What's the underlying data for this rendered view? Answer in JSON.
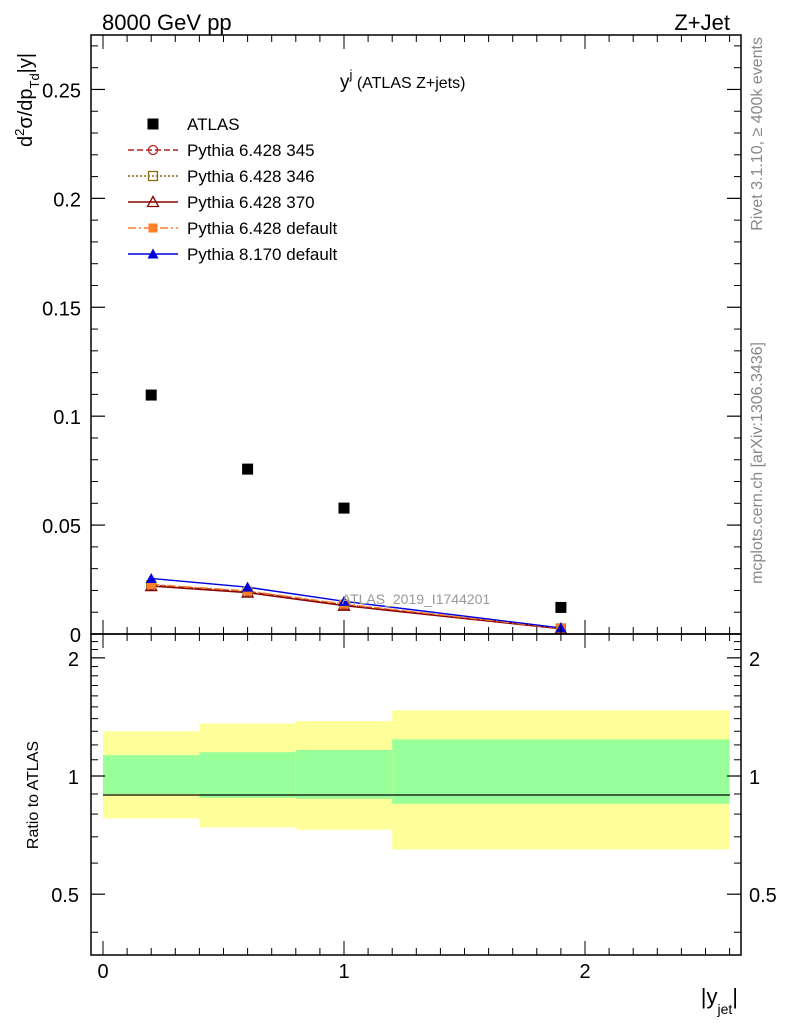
{
  "header": {
    "left": "8000 GeV pp",
    "right": "Z+Jet"
  },
  "side_labels": {
    "rivet": "Rivet 3.1.10, ≥ 400k events",
    "mcplots": "mcplots.cern.ch [arXiv:1306.3436]"
  },
  "main_plot": {
    "title_main": "y",
    "title_sup": "j",
    "title_suffix": " (ATLAS Z+jets)",
    "ylabel_a": "d",
    "ylabel_b": "2",
    "ylabel_c": "σ/dp",
    "ylabel_d": "Td",
    "ylabel_e": "|y|",
    "watermark": "ATLAS_2019_I1744201",
    "y_ticks": [
      "0",
      "0.05",
      "0.1",
      "0.15",
      "0.2",
      "0.25"
    ]
  },
  "ratio_plot": {
    "ylabel": "Ratio to ATLAS",
    "y_ticks": [
      "0.5",
      "1",
      "2"
    ]
  },
  "x_axis": {
    "label_a": "|y",
    "label_b": "jet",
    "label_c": "|",
    "ticks": [
      "0",
      "1",
      "2"
    ]
  },
  "colors": {
    "atlas": "#000000",
    "p345": "#b22222",
    "p346": "#8b6914",
    "p370": "#8b0000",
    "pdefault": "#ff7f2a",
    "p8": "#0000dd",
    "band_outer": "#ffff99",
    "band_inner": "#99ff99"
  },
  "chart_data": [
    {
      "type": "scatter",
      "title": "y^j (ATLAS Z+jets)",
      "xlabel": "|y_jet|",
      "ylabel": "d^2σ/dp_Td|y|",
      "xlim": [
        -0.05,
        2.67
      ],
      "ylim": [
        0,
        0.275
      ],
      "legend_position": "top-left",
      "series": [
        {
          "name": "ATLAS",
          "style": "square-filled",
          "color": "#000000",
          "x": [
            0.2,
            0.6,
            1.0,
            1.9
          ],
          "y": [
            0.1097,
            0.0757,
            0.0578,
            0.0122
          ]
        },
        {
          "name": "Pythia 6.428 345",
          "style": "circle-open-dashed",
          "color": "#b22222",
          "x": [
            0.2,
            0.6,
            1.0,
            1.9
          ],
          "y": [
            0.0225,
            0.0195,
            0.0135,
            0.0025
          ]
        },
        {
          "name": "Pythia 6.428 346",
          "style": "square-open-dotted",
          "color": "#8b6914",
          "x": [
            0.2,
            0.6,
            1.0,
            1.9
          ],
          "y": [
            0.0222,
            0.0192,
            0.0133,
            0.0025
          ]
        },
        {
          "name": "Pythia 6.428 370",
          "style": "triangle-open-solid",
          "color": "#8b0000",
          "x": [
            0.2,
            0.6,
            1.0,
            1.9
          ],
          "y": [
            0.022,
            0.019,
            0.013,
            0.0024
          ]
        },
        {
          "name": "Pythia 6.428 default",
          "style": "square-filled-dashdot",
          "color": "#ff7f2a",
          "x": [
            0.2,
            0.6,
            1.0,
            1.9
          ],
          "y": [
            0.0228,
            0.0198,
            0.0138,
            0.0026
          ]
        },
        {
          "name": "Pythia 8.170 default",
          "style": "triangle-filled-solid",
          "color": "#0000dd",
          "x": [
            0.2,
            0.6,
            1.0,
            1.9
          ],
          "y": [
            0.0255,
            0.0215,
            0.015,
            0.0028
          ]
        }
      ]
    },
    {
      "type": "area",
      "title": "",
      "xlabel": "|y_jet|",
      "ylabel": "Ratio to ATLAS",
      "xlim": [
        -0.05,
        2.67
      ],
      "ylim": [
        0.35,
        2.3
      ],
      "y_scale": "log",
      "reference_line": 1,
      "bins": [
        {
          "x_low": 0.0,
          "x_high": 0.4,
          "inner": [
            0.9,
            1.13
          ],
          "outer": [
            0.78,
            1.3
          ]
        },
        {
          "x_low": 0.4,
          "x_high": 0.8,
          "inner": [
            0.88,
            1.15
          ],
          "outer": [
            0.74,
            1.36
          ]
        },
        {
          "x_low": 0.8,
          "x_high": 1.2,
          "inner": [
            0.875,
            1.165
          ],
          "outer": [
            0.73,
            1.38
          ]
        },
        {
          "x_low": 1.2,
          "x_high": 2.6,
          "inner": [
            0.85,
            1.24
          ],
          "outer": [
            0.65,
            1.47
          ]
        }
      ]
    }
  ]
}
